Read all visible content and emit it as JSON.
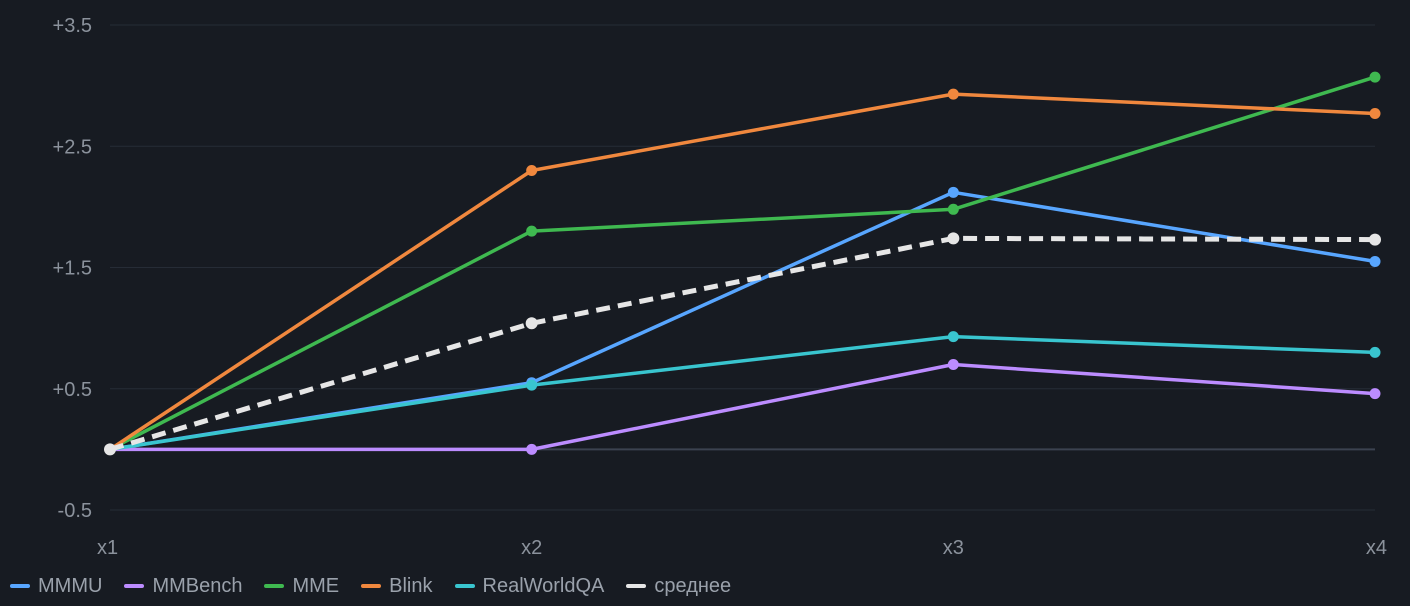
{
  "chart_data": {
    "type": "line",
    "title": "",
    "xlabel": "",
    "ylabel": "",
    "categories": [
      "x1",
      "x2",
      "x3",
      "x4"
    ],
    "ylim": [
      -0.5,
      3.5
    ],
    "y_ticks": [
      "+3.5",
      "+2.5",
      "+1.5",
      "+0.5",
      "-0.5"
    ],
    "y_tick_values": [
      3.5,
      2.5,
      1.5,
      0.5,
      -0.5
    ],
    "grid": true,
    "zero_line": true,
    "legend_position": "bottom-left",
    "series": [
      {
        "name": "MMMU",
        "color": "#58a6ff",
        "dashed": false,
        "values": [
          0,
          0.55,
          2.12,
          1.55
        ]
      },
      {
        "name": "MMBench",
        "color": "#bc8cff",
        "dashed": false,
        "values": [
          0,
          0,
          0.7,
          0.46
        ]
      },
      {
        "name": "MME",
        "color": "#3fb950",
        "dashed": false,
        "values": [
          0,
          1.8,
          1.98,
          3.07
        ]
      },
      {
        "name": "Blink",
        "color": "#f0883e",
        "dashed": false,
        "values": [
          0,
          2.3,
          2.93,
          2.77
        ]
      },
      {
        "name": "RealWorldQA",
        "color": "#39c5cf",
        "dashed": false,
        "values": [
          0,
          0.53,
          0.93,
          0.8
        ]
      },
      {
        "name": "среднее",
        "color": "#e6e6e6",
        "dashed": true,
        "values": [
          0,
          1.04,
          1.74,
          1.73
        ]
      }
    ]
  }
}
